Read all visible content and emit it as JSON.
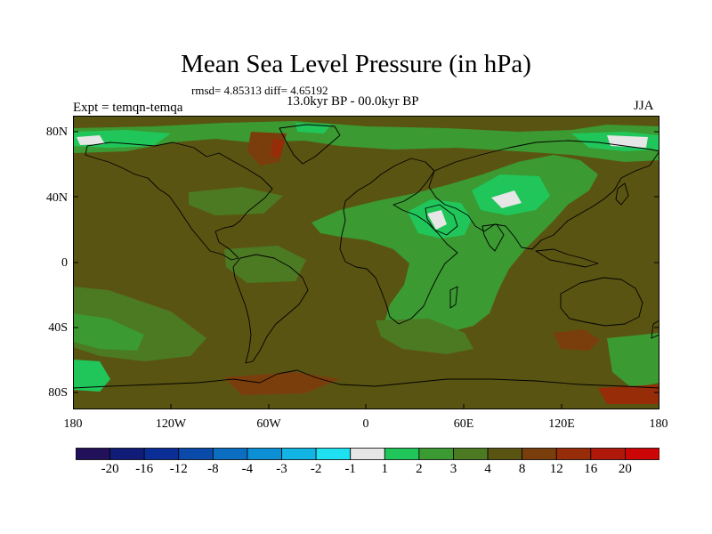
{
  "title": "Mean Sea Level Pressure (in hPa)",
  "stats": "rmsd= 4.85313 diff= 4.65192",
  "period": "13.0kyr BP - 00.0kyr BP",
  "experiment": "Expt = temqn-temqa",
  "season": "JJA",
  "lat_labels": [
    "80N",
    "40N",
    "0",
    "40S",
    "80S"
  ],
  "lon_labels": [
    "180",
    "120W",
    "60W",
    "0",
    "60E",
    "120E",
    "180"
  ],
  "colorbar": {
    "colors": [
      "#22105a",
      "#101c78",
      "#0a2e96",
      "#0a4aaa",
      "#0c6ec0",
      "#0c8fd4",
      "#12b4e4",
      "#1ee0f0",
      "#e6e6e6",
      "#21c65a",
      "#3b9a32",
      "#4c7a22",
      "#5a5412",
      "#7a3e0c",
      "#962c08",
      "#b0180a",
      "#cc0606"
    ],
    "labels": [
      "-20",
      "-16",
      "-12",
      "-8",
      "-4",
      "-3",
      "-2",
      "-1",
      "1",
      "2",
      "3",
      "4",
      "8",
      "12",
      "16",
      "20"
    ]
  },
  "colors": {
    "base": "#5a5412",
    "green3": "#3b9a32",
    "green2": "#21c65a",
    "green4": "#4c7a22",
    "white": "#e6e6e6",
    "red12": "#7a3e0c",
    "red16": "#962c08"
  }
}
